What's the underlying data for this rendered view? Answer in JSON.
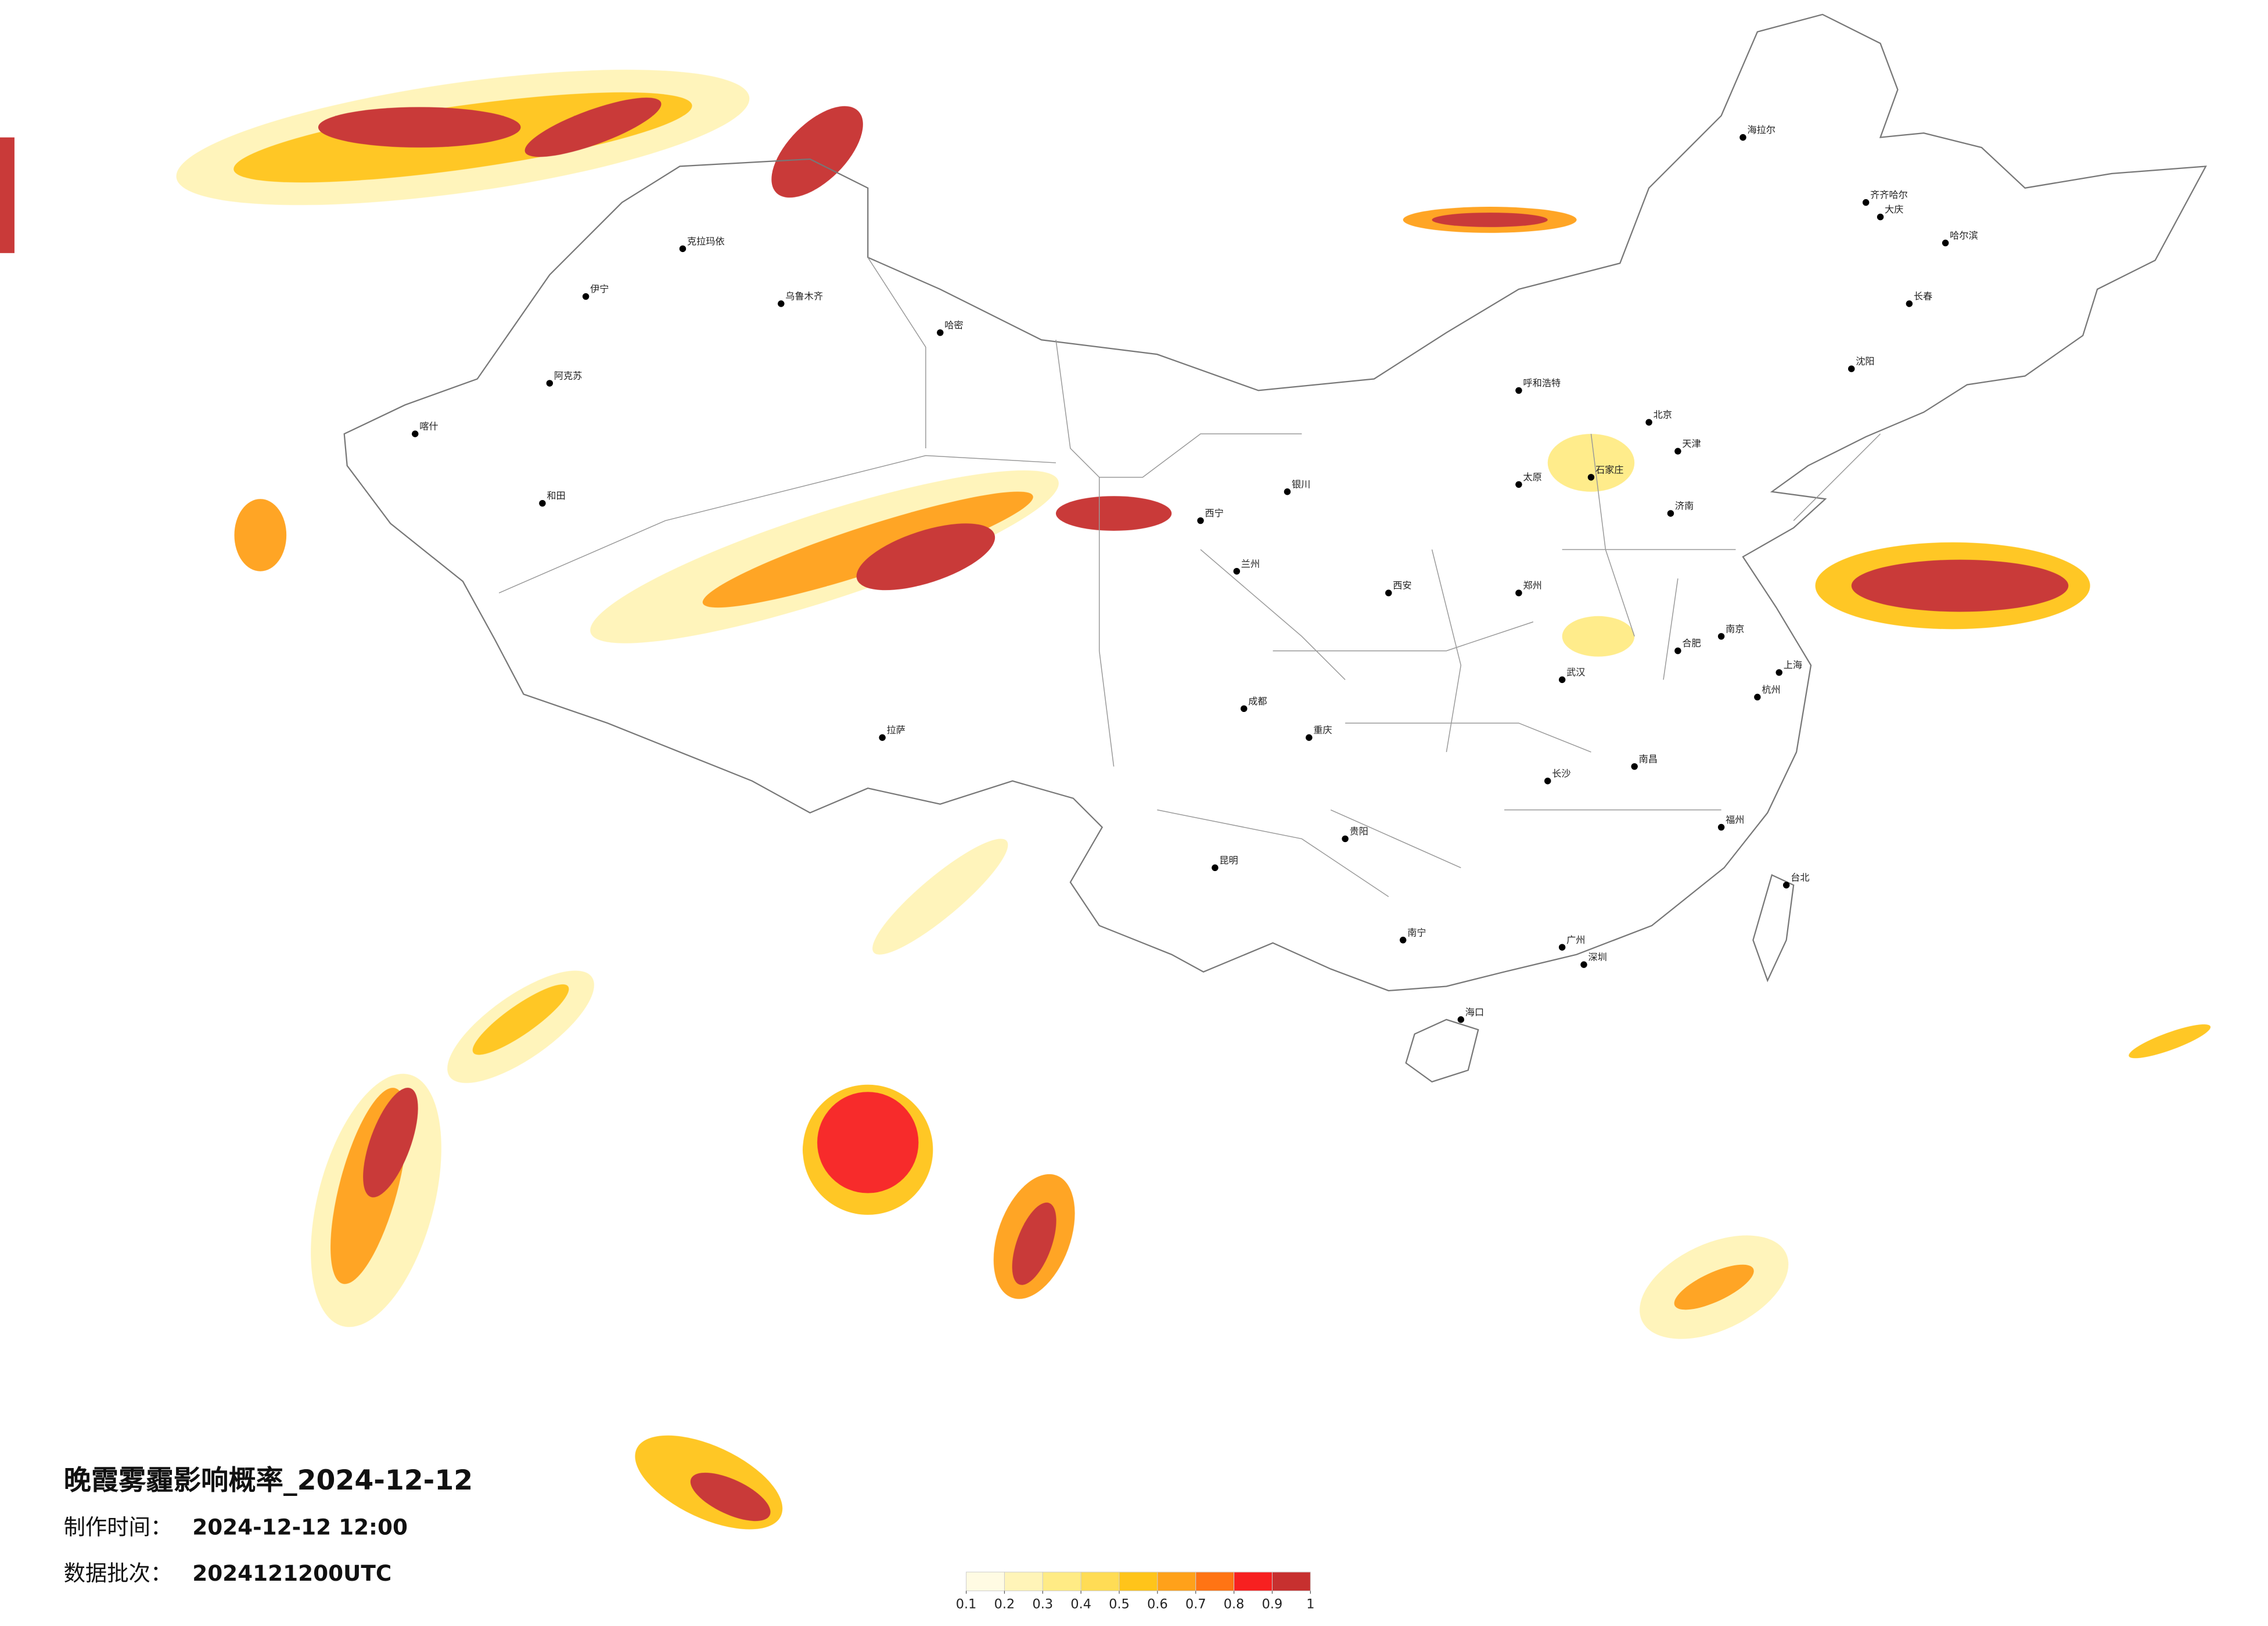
{
  "title": "晚霞雾霾影响概率_2024-12-12",
  "production_time_label": "制作时间：",
  "production_time": "2024-12-12 12:00",
  "batch_label": "数据批次：",
  "batch": "2024121200UTC",
  "colorbar": {
    "ticks": [
      0.1,
      0.2,
      0.3,
      0.4,
      0.5,
      0.6,
      0.7,
      0.8,
      0.9,
      1
    ],
    "colors": [
      "#fffbe3",
      "#fff4b8",
      "#ffeb85",
      "#ffdc55",
      "#ffc41a",
      "#ffa11a",
      "#ff7414",
      "#f72020",
      "#c7302f"
    ]
  },
  "cities": [
    "北京",
    "天津",
    "上海",
    "广州",
    "深圳",
    "重庆",
    "成都",
    "武汉",
    "西安",
    "兰州",
    "乌鲁木齐",
    "拉萨",
    "西宁",
    "银川",
    "呼和浩特",
    "哈尔滨",
    "长春",
    "沈阳",
    "济南",
    "郑州",
    "南京",
    "杭州",
    "合肥",
    "南昌",
    "长沙",
    "福州",
    "南宁",
    "贵阳",
    "昆明",
    "海口",
    "台北",
    "石家庄",
    "太原",
    "和田",
    "喀什",
    "伊宁",
    "克拉玛依",
    "阿克苏",
    "哈密",
    "海拉尔",
    "齐齐哈尔",
    "大庆"
  ]
}
